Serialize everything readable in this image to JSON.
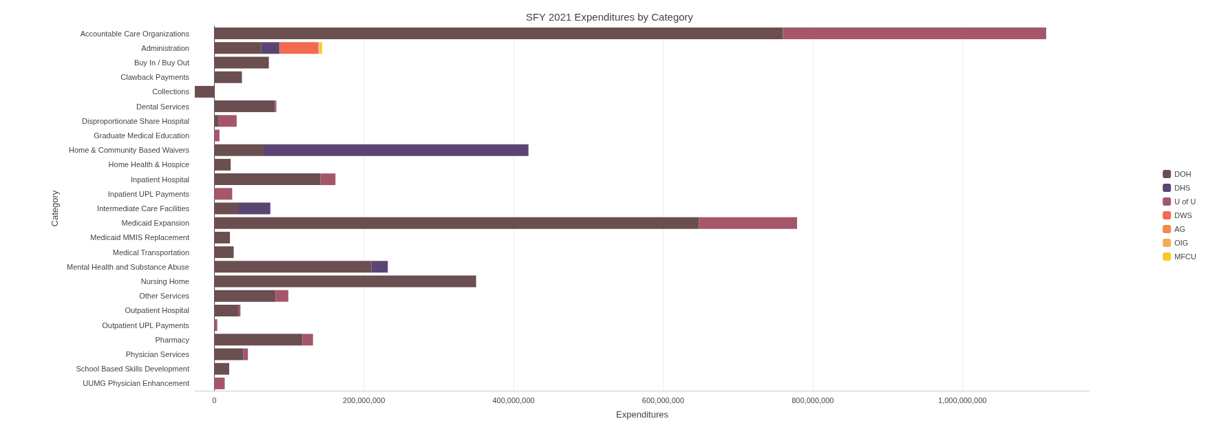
{
  "chart_data": {
    "type": "bar",
    "orientation": "horizontal",
    "stacked": true,
    "title": "SFY 2021 Expenditures by Category",
    "xlabel": "Expenditures",
    "ylabel": "Category",
    "categories": [
      "Accountable Care Organizations",
      "Administration",
      "Buy In / Buy Out",
      "Clawback Payments",
      "Collections",
      "Dental Services",
      "Disproportionate Share Hospital",
      "Graduate Medical Education",
      "Home & Community Based Waivers",
      "Home Health & Hospice",
      "Inpatient Hospital",
      "Inpatient UPL Payments",
      "Intermediate Care Facilities",
      "Medicaid Expansion",
      "Medicaid MMIS Replacement",
      "Medical Transportation",
      "Mental Health and Substance Abuse",
      "Nursing Home",
      "Other Services",
      "Outpatient Hospital",
      "Outpatient UPL Payments",
      "Pharmacy",
      "Physician Services",
      "School Based Skills Development",
      "UUMG Physician Enhancement"
    ],
    "series": [
      {
        "name": "DOH",
        "color": "#6b4e50",
        "values": [
          760000000,
          63000000,
          73000000,
          37000000,
          -26000000,
          81000000,
          6000000,
          null,
          66000000,
          22000000,
          142000000,
          null,
          32000000,
          648000000,
          21000000,
          26000000,
          210000000,
          350000000,
          82000000,
          32000000,
          null,
          118000000,
          39000000,
          20000000,
          null
        ]
      },
      {
        "name": "DHS",
        "color": "#5a4572",
        "values": [
          null,
          24000000,
          null,
          null,
          null,
          null,
          null,
          null,
          354000000,
          null,
          null,
          null,
          43000000,
          null,
          null,
          null,
          22000000,
          null,
          null,
          null,
          null,
          null,
          null,
          null,
          null
        ]
      },
      {
        "name": "U of U",
        "color": "#a5566a",
        "values": [
          352000000,
          null,
          null,
          null,
          null,
          2000000,
          24000000,
          7000000,
          null,
          null,
          20000000,
          24000000,
          null,
          131000000,
          null,
          null,
          null,
          null,
          17000000,
          3000000,
          4000000,
          14000000,
          6000000,
          null,
          14000000
        ]
      },
      {
        "name": "DWS",
        "color": "#f26b4e",
        "values": [
          null,
          52000000,
          null,
          null,
          null,
          null,
          null,
          null,
          null,
          null,
          null,
          null,
          null,
          null,
          null,
          null,
          null,
          null,
          null,
          null,
          null,
          null,
          null,
          null,
          null
        ]
      },
      {
        "name": "AG",
        "color": "#f4874b",
        "values": [
          null,
          1000000,
          null,
          null,
          null,
          null,
          null,
          null,
          null,
          null,
          null,
          null,
          null,
          null,
          null,
          null,
          null,
          null,
          null,
          null,
          null,
          null,
          null,
          null,
          null
        ]
      },
      {
        "name": "OIG",
        "color": "#f4ab5e",
        "values": [
          null,
          1000000,
          null,
          null,
          null,
          null,
          null,
          null,
          null,
          null,
          null,
          null,
          null,
          null,
          null,
          null,
          null,
          null,
          null,
          null,
          null,
          null,
          null,
          null,
          null
        ]
      },
      {
        "name": "MFCU",
        "color": "#fac72a",
        "values": [
          null,
          3000000,
          null,
          null,
          null,
          null,
          null,
          null,
          null,
          null,
          null,
          null,
          null,
          null,
          null,
          null,
          null,
          null,
          null,
          null,
          null,
          null,
          null,
          null,
          null
        ]
      }
    ],
    "xlim": [
      -26000000,
      1170000000
    ],
    "xticks": [
      0,
      {
        "value": 200000000,
        "label": "200,000,000"
      },
      {
        "value": 400000000,
        "label": "400,000,000"
      },
      {
        "value": 600000000,
        "label": "600,000,000"
      },
      {
        "value": 800000000,
        "label": "800,000,000"
      },
      {
        "value": 1000000000,
        "label": "1,000,000,000"
      }
    ],
    "grid": "x",
    "legend": "right"
  }
}
